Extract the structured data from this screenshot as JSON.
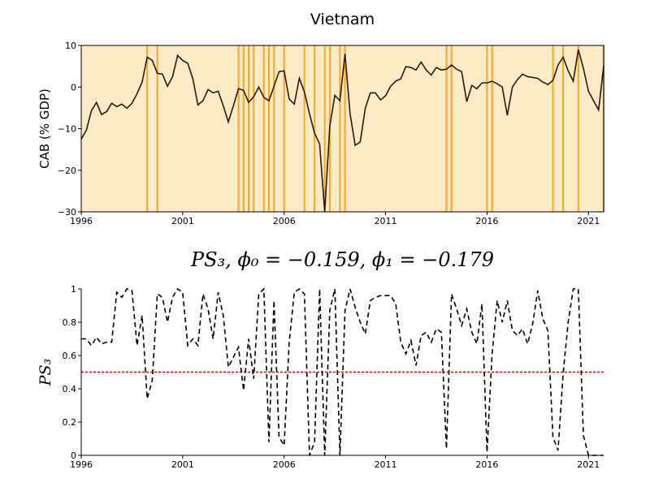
{
  "chart_data": [
    {
      "type": "line",
      "title": "Vietnam",
      "y_label": "CAB (% GDP)",
      "background": "#fdebc8",
      "highlight_color": "#f5a623",
      "highlight_x": [
        1999.25,
        1999.75,
        2003.75,
        2004.0,
        2004.25,
        2004.5,
        2005.0,
        2005.25,
        2005.5,
        2006.0,
        2007.0,
        2007.5,
        2008.0,
        2008.25,
        2008.75,
        2009.0,
        2014.0,
        2014.25,
        2016.0,
        2016.25,
        2019.25,
        2019.75,
        2020.5,
        2021.75
      ],
      "x": [
        1996,
        1996.25,
        1996.5,
        1996.75,
        1997,
        1997.25,
        1997.5,
        1997.75,
        1998,
        1998.25,
        1998.5,
        1998.75,
        1999,
        1999.25,
        1999.5,
        1999.75,
        2000,
        2000.25,
        2000.5,
        2000.75,
        2001,
        2001.25,
        2001.5,
        2001.75,
        2002,
        2002.25,
        2002.5,
        2002.75,
        2003,
        2003.25,
        2003.5,
        2003.75,
        2004,
        2004.25,
        2004.5,
        2004.75,
        2005,
        2005.25,
        2005.5,
        2005.75,
        2006,
        2006.25,
        2006.5,
        2006.75,
        2007,
        2007.25,
        2007.5,
        2007.75,
        2008,
        2008.25,
        2008.5,
        2008.75,
        2009,
        2009.25,
        2009.5,
        2009.75,
        2010,
        2010.25,
        2010.5,
        2010.75,
        2011,
        2011.25,
        2011.5,
        2011.75,
        2012,
        2012.25,
        2012.5,
        2012.75,
        2013,
        2013.25,
        2013.5,
        2013.75,
        2014,
        2014.25,
        2014.5,
        2014.75,
        2015,
        2015.25,
        2015.5,
        2015.75,
        2016,
        2016.25,
        2016.5,
        2016.75,
        2017,
        2017.25,
        2017.5,
        2017.75,
        2018,
        2018.25,
        2018.5,
        2018.75,
        2019,
        2019.25,
        2019.5,
        2019.75,
        2020,
        2020.25,
        2020.5,
        2020.75,
        2021,
        2021.25,
        2021.5,
        2021.75
      ],
      "series": [
        {
          "color": "#2b1a0a",
          "dash": false,
          "values": [
            -12.5,
            -10.4,
            -5.7,
            -3.7,
            -6.6,
            -5.9,
            -3.9,
            -4.7,
            -4.1,
            -5.1,
            -3.9,
            -1.6,
            1.2,
            7.2,
            6.4,
            3.3,
            3.1,
            0.2,
            2.5,
            7.6,
            6.4,
            5.7,
            2,
            -4.3,
            -3.3,
            -0.6,
            -1.4,
            -1,
            -4.5,
            -8.4,
            -4.5,
            -0.4,
            -0.8,
            -3.7,
            -2.3,
            0,
            -2.5,
            -3.3,
            0.2,
            3.7,
            3.9,
            -2.9,
            -4.1,
            2.1,
            -1.2,
            -6.4,
            -11.1,
            -13.7,
            -30,
            -9.4,
            -2,
            -3.3,
            8,
            -6.4,
            -14,
            -13.2,
            -5.1,
            -1.4,
            -1.4,
            -3.1,
            -2.1,
            0.2,
            1.4,
            2,
            4.9,
            4.7,
            4.1,
            6,
            4.1,
            2.9,
            4.7,
            4.1,
            4.3,
            5.3,
            4.3,
            3.7,
            -3.5,
            0.4,
            -0.4,
            1,
            1,
            1.4,
            0.8,
            0,
            -6.8,
            0,
            1.8,
            3.1,
            2.5,
            2.3,
            2.1,
            1.2,
            0.6,
            1.6,
            5.3,
            7.2,
            3.9,
            1.4,
            9,
            4.5,
            -1,
            -3.3,
            -5.5,
            5.1
          ]
        }
      ],
      "xlim": [
        1996,
        2021.75
      ],
      "xticks": [
        1996,
        2001,
        2006,
        2011,
        2016,
        2021
      ],
      "ylim": [
        -30,
        10
      ],
      "yticks": [
        {
          "value": -30,
          "label": "−30"
        },
        {
          "value": -20,
          "label": "−20"
        },
        {
          "value": -10,
          "label": "−10"
        },
        0,
        10
      ]
    },
    {
      "type": "line",
      "title": "PS₃, ϕ₀ = −0.159, ϕ₁ = −0.179",
      "y_label": "PS₃",
      "threshold": 0.5,
      "threshold_color": "#dd0000",
      "x": [
        1996,
        1996.25,
        1996.5,
        1996.75,
        1997,
        1997.25,
        1997.5,
        1997.75,
        1998,
        1998.25,
        1998.5,
        1998.75,
        1999,
        1999.25,
        1999.5,
        1999.75,
        2000,
        2000.25,
        2000.5,
        2000.75,
        2001,
        2001.25,
        2001.5,
        2001.75,
        2002,
        2002.25,
        2002.5,
        2002.75,
        2003,
        2003.25,
        2003.5,
        2003.75,
        2004,
        2004.25,
        2004.5,
        2004.75,
        2005,
        2005.25,
        2005.5,
        2005.75,
        2006,
        2006.25,
        2006.5,
        2006.75,
        2007,
        2007.25,
        2007.5,
        2007.75,
        2008,
        2008.25,
        2008.5,
        2008.75,
        2009,
        2009.25,
        2009.5,
        2009.75,
        2010,
        2010.25,
        2010.5,
        2010.75,
        2011,
        2011.25,
        2011.5,
        2011.75,
        2012,
        2012.25,
        2012.5,
        2012.75,
        2013,
        2013.25,
        2013.5,
        2013.75,
        2014,
        2014.25,
        2014.5,
        2014.75,
        2015,
        2015.25,
        2015.5,
        2015.75,
        2016,
        2016.25,
        2016.5,
        2016.75,
        2017,
        2017.25,
        2017.5,
        2017.75,
        2018,
        2018.25,
        2018.5,
        2018.75,
        2019,
        2019.25,
        2019.5,
        2019.75,
        2020,
        2020.25,
        2020.5,
        2020.75,
        2021,
        2021.25,
        2021.5,
        2021.75
      ],
      "series": [
        {
          "color": "#000000",
          "dash": true,
          "values": [
            0.7,
            0.7,
            0.66,
            0.71,
            0.67,
            0.68,
            0.68,
            0.98,
            0.95,
            1,
            0.99,
            0.66,
            0.84,
            0.34,
            0.45,
            0.97,
            0.95,
            0.8,
            0.95,
            1,
            0.98,
            0.66,
            0.7,
            0.66,
            0.97,
            0.88,
            0.7,
            0.98,
            0.84,
            0.53,
            0.59,
            0.65,
            0.39,
            0.7,
            0.46,
            0.97,
            1,
            0.08,
            0.93,
            0.11,
            0.06,
            0.68,
            0.98,
            1,
            0.97,
            0,
            0.08,
            1,
            0,
            0.87,
            1,
            0,
            0.87,
            1,
            0.89,
            0.8,
            0.73,
            0.93,
            0.95,
            0.96,
            0.96,
            0.96,
            0.91,
            0.68,
            0.61,
            0.69,
            0.54,
            0.72,
            0.74,
            0.68,
            0.76,
            0.74,
            0.04,
            0.97,
            0.88,
            0.78,
            0.88,
            0.74,
            0.67,
            0.91,
            0.02,
            0.61,
            0.93,
            0.8,
            0.93,
            0.75,
            0.72,
            0.76,
            0.67,
            0.79,
            0.99,
            0.82,
            0.75,
            0.11,
            0.03,
            0.49,
            0.8,
            1,
            1,
            0.12,
            0,
            0,
            0,
            0
          ]
        }
      ],
      "xlim": [
        1996,
        2021.75
      ],
      "xticks": [
        1996,
        2001,
        2006,
        2011,
        2016,
        2021
      ],
      "ylim": [
        0,
        1
      ],
      "yticks": [
        0,
        0.2,
        0.4,
        0.6,
        0.8,
        1
      ]
    }
  ]
}
